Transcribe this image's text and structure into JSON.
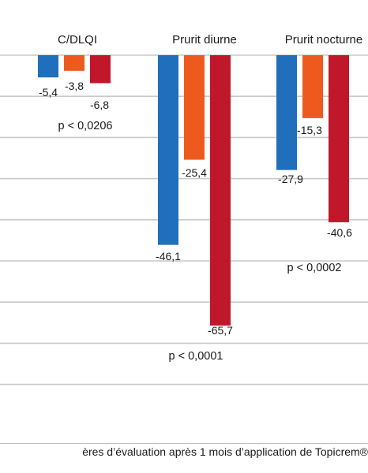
{
  "chart_data": {
    "type": "bar",
    "categories": [
      "C/DLQI",
      "Prurit diurne",
      "Prurit nocturne"
    ],
    "series": [
      {
        "color": "#1f6fbd",
        "values": [
          -5.4,
          -46.1,
          -27.9
        ]
      },
      {
        "color": "#ee5a1e",
        "values": [
          -3.8,
          -25.4,
          -15.3
        ]
      },
      {
        "color": "#c1172a",
        "values": [
          -6.8,
          -65.7,
          -40.6
        ]
      }
    ],
    "data_labels": [
      [
        "-5,4",
        "-46,1",
        "-27,9"
      ],
      [
        "-3,8",
        "-25,4",
        "-15,3"
      ],
      [
        "-6,8",
        "-65,7",
        "-40,6"
      ]
    ],
    "p_values": [
      "p < 0,0206",
      "p < 0,0001",
      "p < 0,0002"
    ],
    "ylim": [
      -80,
      0
    ],
    "grid": true
  },
  "caption": "ères d’évaluation après 1 mois d’application de Topicrem®"
}
